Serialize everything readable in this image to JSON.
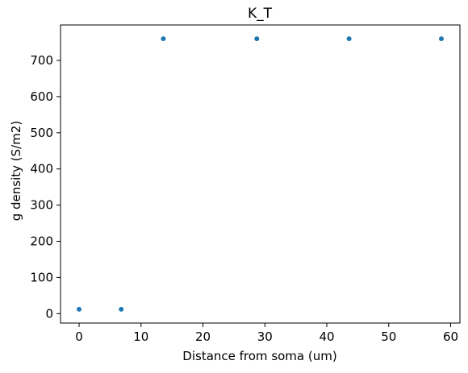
{
  "chart_data": {
    "type": "scatter",
    "title": "K_T",
    "xlabel": "Distance from soma (um)",
    "ylabel": "g density (S/m2)",
    "xlim": [
      -3,
      61.5
    ],
    "ylim": [
      -26,
      798
    ],
    "xticks": [
      0,
      10,
      20,
      30,
      40,
      50,
      60
    ],
    "yticks": [
      0,
      100,
      200,
      300,
      400,
      500,
      600,
      700
    ],
    "grid": false,
    "color": "#1f77b4",
    "series": [
      {
        "x": [
          0,
          6.8,
          13.6,
          28.7,
          43.6,
          58.5
        ],
        "y": [
          12,
          12,
          760,
          760,
          760,
          760
        ]
      }
    ]
  }
}
